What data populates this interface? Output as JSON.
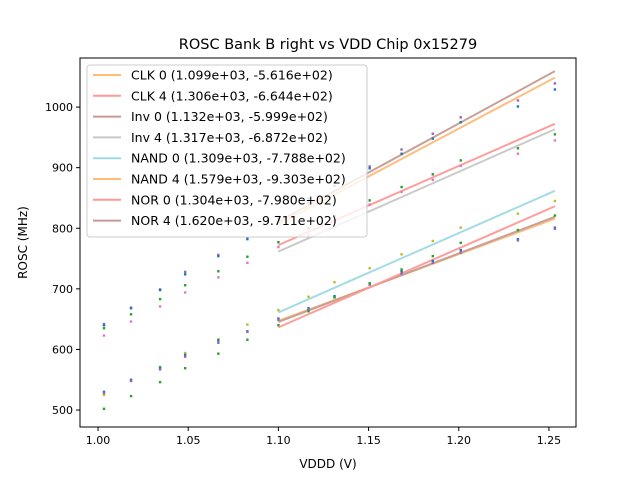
{
  "chart_data": {
    "type": "scatter",
    "title": "ROSC Bank B right vs VDD Chip 0x15279",
    "xlabel": "VDDD (V)",
    "ylabel": "ROSC (MHz)",
    "xlim": [
      0.99,
      1.265
    ],
    "ylim": [
      472,
      1081
    ],
    "grid": false,
    "legend_position": "top-left",
    "x_ticks": [
      {
        "value": 1.0,
        "label": "1.00"
      },
      {
        "value": 1.05,
        "label": "1.05"
      },
      {
        "value": 1.1,
        "label": "1.10"
      },
      {
        "value": 1.15,
        "label": "1.15"
      },
      {
        "value": 1.2,
        "label": "1.20"
      },
      {
        "value": 1.25,
        "label": "1.25"
      }
    ],
    "y_ticks": [
      {
        "value": 500,
        "label": "500"
      },
      {
        "value": 600,
        "label": "600"
      },
      {
        "value": 700,
        "label": "700"
      },
      {
        "value": 800,
        "label": "800"
      },
      {
        "value": 900,
        "label": "900"
      },
      {
        "value": 1000,
        "label": "1000"
      }
    ],
    "fit_range": [
      1.1,
      1.2533
    ],
    "fit_lines": [
      {
        "name": "CLK 0",
        "label": "CLK 0 (1.099e+03, -5.616e+02)",
        "slope": 1099,
        "intercept": -561.6,
        "color": "#ffbb78"
      },
      {
        "name": "CLK 4",
        "label": "CLK 4 (1.306e+03, -6.644e+02)",
        "slope": 1306,
        "intercept": -664.4,
        "color": "#ff9896"
      },
      {
        "name": "Inv 0",
        "label": "Inv 0 (1.132e+03, -5.999e+02)",
        "slope": 1132,
        "intercept": -599.9,
        "color": "#c49c94"
      },
      {
        "name": "Inv 4",
        "label": "Inv 4 (1.317e+03, -6.872e+02)",
        "slope": 1317,
        "intercept": -687.2,
        "color": "#c7c7c7"
      },
      {
        "name": "NAND 0",
        "label": "NAND 0 (1.309e+03, -7.788e+02)",
        "slope": 1309,
        "intercept": -778.8,
        "color": "#9edae5"
      },
      {
        "name": "NAND 4",
        "label": "NAND 4 (1.579e+03, -9.303e+02)",
        "slope": 1579,
        "intercept": -930.3,
        "color": "#ffbb78"
      },
      {
        "name": "NOR 0",
        "label": "NOR 0 (1.304e+03, -7.980e+02)",
        "slope": 1304,
        "intercept": -798.0,
        "color": "#ff9896"
      },
      {
        "name": "NOR 4",
        "label": "NOR 4 (1.620e+03, -9.711e+02)",
        "slope": 1620,
        "intercept": -971.1,
        "color": "#c49c94"
      }
    ],
    "x": [
      1.0033,
      1.0183,
      1.0344,
      1.0483,
      1.0667,
      1.0828,
      1.1,
      1.1167,
      1.1311,
      1.1506,
      1.1683,
      1.1856,
      1.2011,
      1.2328,
      1.2533
    ],
    "series": [
      {
        "name": "points-purple-high",
        "color": "#9467bd",
        "values": [
          642,
          669,
          699,
          728,
          756,
          784,
          819,
          849,
          875,
          902,
          930,
          956,
          983,
          1011,
          1039
        ]
      },
      {
        "name": "points-blue-high",
        "color": "#1f77b4",
        "values": [
          640,
          668,
          698,
          724,
          754,
          782,
          816,
          842,
          870,
          899,
          923,
          948,
          975,
          1001,
          1029
        ]
      },
      {
        "name": "points-green-mid",
        "color": "#2ca02c",
        "values": [
          635,
          658,
          683,
          706,
          729,
          753,
          777,
          800,
          820,
          846,
          868,
          889,
          912,
          932,
          955
        ]
      },
      {
        "name": "points-pink-mid",
        "color": "#e377c2",
        "values": [
          623,
          646,
          671,
          694,
          719,
          743,
          769,
          788,
          812,
          839,
          860,
          880,
          903,
          923,
          945
        ]
      },
      {
        "name": "points-olive-low",
        "color": "#bcbd22",
        "values": [
          525,
          548,
          571,
          594,
          617,
          641,
          665,
          687,
          711,
          734,
          757,
          779,
          801,
          824,
          845
        ]
      },
      {
        "name": "points-blue-low",
        "color": "#1f77b4",
        "values": [
          530,
          550,
          570,
          591,
          615,
          630,
          651,
          668,
          688,
          709,
          729,
          746,
          764,
          782,
          801
        ]
      },
      {
        "name": "points-purple-low",
        "color": "#9467bd",
        "values": [
          528,
          548,
          567,
          588,
          611,
          629,
          649,
          666,
          686,
          707,
          725,
          743,
          760,
          780,
          799
        ]
      },
      {
        "name": "points-green-low",
        "color": "#2ca02c",
        "values": [
          502,
          523,
          546,
          569,
          593,
          616,
          640,
          663,
          686,
          709,
          732,
          754,
          776,
          797,
          821
        ]
      }
    ]
  }
}
